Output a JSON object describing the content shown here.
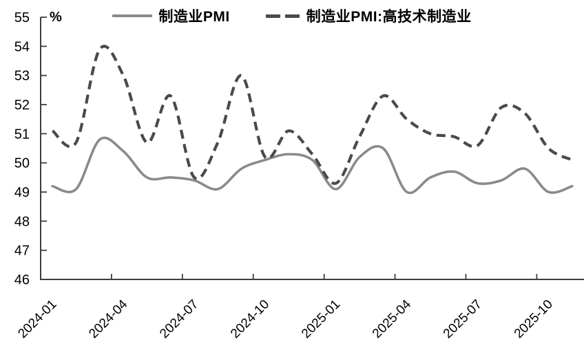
{
  "chart_data": {
    "type": "line",
    "title": "",
    "x": [
      "2024-01",
      "2024-02",
      "2024-03",
      "2024-04",
      "2024-05",
      "2024-06",
      "2024-07",
      "2024-08",
      "2024-09",
      "2024-10",
      "2024-11",
      "2024-12",
      "2025-01",
      "2025-02",
      "2025-03",
      "2025-04",
      "2025-05",
      "2025-06",
      "2025-07",
      "2025-08",
      "2025-09",
      "2025-10",
      "2025-11"
    ],
    "series": [
      {
        "name": "制造业PMI",
        "style": "solid",
        "color": "#8a8a8a",
        "values": [
          49.2,
          49.1,
          50.8,
          50.4,
          49.5,
          49.5,
          49.4,
          49.1,
          49.8,
          50.1,
          50.3,
          50.1,
          49.1,
          50.2,
          50.5,
          49.0,
          49.5,
          49.7,
          49.3,
          49.4,
          49.8,
          49.0,
          49.2
        ]
      },
      {
        "name": "制造业PMI:高技术制造业",
        "style": "dashed",
        "color": "#4a4a4a",
        "values": [
          51.1,
          50.7,
          53.9,
          53.0,
          50.7,
          52.3,
          49.5,
          50.7,
          53.0,
          50.2,
          51.1,
          50.3,
          49.3,
          50.9,
          52.3,
          51.5,
          51.0,
          50.9,
          50.6,
          51.9,
          51.7,
          50.5,
          50.1
        ]
      }
    ],
    "xlabel": "",
    "ylabel": "%",
    "ylim": [
      46,
      55
    ],
    "grid": false,
    "legend_position": "top",
    "smoothing": "spline"
  },
  "y_axis": {
    "unit": "%",
    "tick_labels": [
      "55",
      "54",
      "53",
      "52",
      "51",
      "50",
      "49",
      "48",
      "47",
      "46"
    ]
  },
  "x_axis": {
    "tick_labels": [
      "2024-01",
      "2024-04",
      "2024-07",
      "2024-10",
      "2025-01",
      "2025-04",
      "2025-07",
      "2025-10"
    ],
    "tick_interval_months": 3
  },
  "colors": {
    "background": "#ffffff",
    "axis": "#3d3d3d",
    "solid_series": "#8a8a8a",
    "dashed_series": "#4a4a4a",
    "text": "#000000"
  }
}
